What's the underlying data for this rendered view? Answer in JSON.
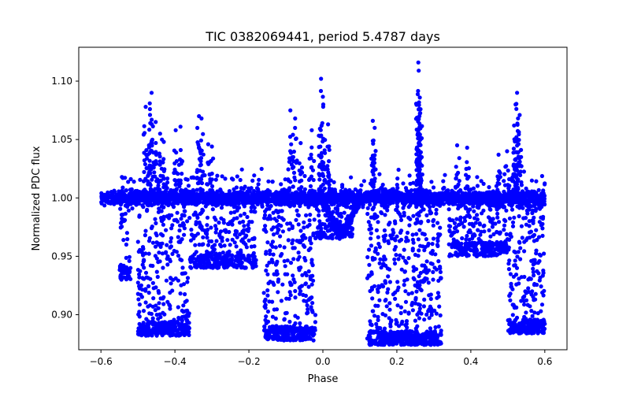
{
  "chart_data": {
    "type": "scatter",
    "title": "TIC 0382069441, period 5.4787 days",
    "xlabel": "Phase",
    "ylabel": "Normalized PDC flux",
    "xlim": [
      -0.66,
      0.66
    ],
    "ylim": [
      0.87,
      1.129
    ],
    "xticks": [
      -0.6,
      -0.4,
      -0.2,
      0.0,
      0.2,
      0.4,
      0.6
    ],
    "xtick_labels": [
      "−0.6",
      "−0.4",
      "−0.2",
      "0.0",
      "0.2",
      "0.4",
      "0.6"
    ],
    "yticks": [
      0.9,
      0.95,
      1.0,
      1.05,
      1.1
    ],
    "ytick_labels": [
      "0.90",
      "0.95",
      "1.00",
      "1.05",
      "1.10"
    ],
    "grid": false,
    "legend": "none",
    "marker_color": "#0000ff",
    "series": [
      {
        "name": "phase-folded light curve",
        "baseline": 1.0,
        "dip_regions": [
          {
            "x_from": -0.55,
            "x_to": -0.52,
            "min_flux": 0.93
          },
          {
            "x_from": -0.5,
            "x_to": -0.36,
            "min_flux": 0.882
          },
          {
            "x_from": -0.36,
            "x_to": -0.18,
            "min_flux": 0.94
          },
          {
            "x_from": -0.16,
            "x_to": -0.02,
            "min_flux": 0.878
          },
          {
            "x_from": -0.02,
            "x_to": 0.08,
            "min_flux": 0.965
          },
          {
            "x_from": 0.12,
            "x_to": 0.32,
            "min_flux": 0.874
          },
          {
            "x_from": 0.34,
            "x_to": 0.5,
            "min_flux": 0.95
          },
          {
            "x_from": 0.5,
            "x_to": 0.6,
            "min_flux": 0.884
          }
        ],
        "flare_points": [
          [
            -0.463,
            1.09
          ],
          [
            -0.468,
            1.081
          ],
          [
            -0.479,
            1.078
          ],
          [
            -0.452,
            1.065
          ],
          [
            -0.44,
            1.055
          ],
          [
            -0.43,
            1.048
          ],
          [
            -0.385,
            1.061
          ],
          [
            -0.398,
            1.058
          ],
          [
            -0.335,
            1.07
          ],
          [
            -0.328,
            1.068
          ],
          [
            -0.31,
            1.046
          ],
          [
            -0.3,
            1.044
          ],
          [
            -0.088,
            1.075
          ],
          [
            -0.075,
            1.068
          ],
          [
            -0.06,
            1.047
          ],
          [
            -0.03,
            1.058
          ],
          [
            -0.005,
            1.102
          ],
          [
            0.001,
            1.08
          ],
          [
            0.014,
            1.063
          ],
          [
            0.135,
            1.066
          ],
          [
            0.14,
            1.06
          ],
          [
            0.258,
            1.116
          ],
          [
            0.259,
            1.109
          ],
          [
            0.262,
            1.086
          ],
          [
            0.264,
            1.076
          ],
          [
            0.26,
            1.055
          ],
          [
            0.363,
            1.045
          ],
          [
            0.39,
            1.043
          ],
          [
            0.525,
            1.09
          ],
          [
            0.521,
            1.08
          ],
          [
            0.532,
            1.071
          ],
          [
            0.517,
            1.062
          ],
          [
            0.498,
            1.04
          ],
          [
            0.475,
            1.037
          ]
        ]
      }
    ]
  }
}
